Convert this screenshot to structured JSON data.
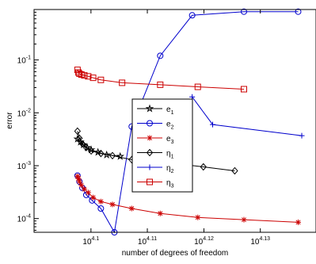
{
  "chart_data": {
    "type": "line",
    "title": "",
    "xlabel": "number of degrees of freedom",
    "ylabel": "error",
    "xscale": "log",
    "yscale": "log",
    "xlim": [
      12300,
      13800
    ],
    "ylim": [
      5.5e-05,
      0.9
    ],
    "grid": false,
    "legend_position": "center",
    "x_ticks": [
      {
        "value": 12589,
        "base": "10",
        "exp": "4.1"
      },
      {
        "value": 12882,
        "base": "10",
        "exp": "4.11"
      },
      {
        "value": 13183,
        "base": "10",
        "exp": "4.12"
      },
      {
        "value": 13490,
        "base": "10",
        "exp": "4.13"
      }
    ],
    "y_ticks": [
      {
        "value": 0.0001,
        "base": "10",
        "exp": "-4"
      },
      {
        "value": 0.001,
        "base": "10",
        "exp": "-3"
      },
      {
        "value": 0.01,
        "base": "10",
        "exp": "-2"
      },
      {
        "value": 0.1,
        "base": "10",
        "exp": "-1"
      }
    ],
    "series": [
      {
        "name": "e",
        "sub": "1",
        "color": "#000000",
        "marker": "star",
        "x": [
          12520,
          12535,
          12550,
          12570,
          12590,
          12625,
          12670,
          12740
        ],
        "y": [
          0.0032,
          0.0028,
          0.0025,
          0.0022,
          0.002,
          0.0018,
          0.0016,
          0.0015
        ]
      },
      {
        "name": "e",
        "sub": "2",
        "color": "#0000cc",
        "marker": "circle",
        "x": [
          12520,
          12530,
          12545,
          12565,
          12595,
          12640,
          12710,
          12800,
          12950,
          13120,
          13400,
          13700
        ],
        "y": [
          0.00065,
          0.0005,
          0.00038,
          0.00028,
          0.00022,
          0.000155,
          5.5e-05,
          0.0055,
          0.12,
          0.7,
          0.82,
          0.82
        ]
      },
      {
        "name": "e",
        "sub": "3",
        "color": "#cc0000",
        "marker": "asterisk",
        "x": [
          12520,
          12525,
          12530,
          12540,
          12555,
          12575,
          12600,
          12640,
          12700,
          12800,
          12950,
          13150,
          13400,
          13700
        ],
        "y": [
          0.00063,
          0.00057,
          0.0005,
          0.00043,
          0.00036,
          0.00031,
          0.00025,
          0.00021,
          0.000185,
          0.000155,
          0.000125,
          0.000105,
          9.5e-05,
          8.5e-05
        ]
      },
      {
        "name": "η",
        "sub": "1",
        "color": "#000000",
        "marker": "diamond",
        "x": [
          12520,
          12530,
          12545,
          12565,
          12590,
          12640,
          12700,
          12800,
          12980,
          13180,
          13350
        ],
        "y": [
          0.0045,
          0.0033,
          0.0026,
          0.0022,
          0.0019,
          0.0017,
          0.00155,
          0.0013,
          0.00115,
          0.00095,
          0.0008
        ]
      },
      {
        "name": "η",
        "sub": "2",
        "color": "#0000cc",
        "marker": "plus",
        "x": [
          13120,
          13230,
          13720
        ],
        "y": [
          0.02,
          0.006,
          0.0037
        ]
      },
      {
        "name": "η",
        "sub": "3",
        "color": "#cc0000",
        "marker": "square",
        "x": [
          12520,
          12525,
          12530,
          12540,
          12555,
          12575,
          12600,
          12640,
          12750,
          12950,
          13150,
          13400
        ],
        "y": [
          0.065,
          0.058,
          0.055,
          0.053,
          0.051,
          0.049,
          0.046,
          0.042,
          0.037,
          0.034,
          0.031,
          0.028
        ]
      }
    ]
  }
}
